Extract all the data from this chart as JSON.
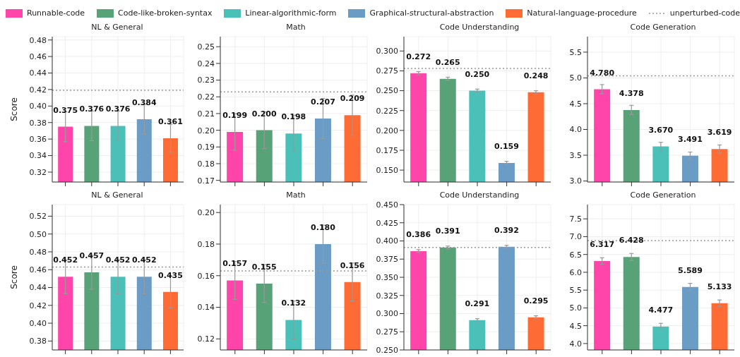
{
  "chart_data": [
    {
      "type": "bar",
      "title": "NL & General",
      "ylabel": "Score",
      "categories": [
        null,
        null,
        null,
        null,
        null
      ],
      "legend": "top",
      "grid": true,
      "tick_labels": "y",
      "ylim": [
        0.308,
        0.484
      ],
      "yticks": [
        {
          "value": 0.32,
          "label": "0.32"
        },
        {
          "value": 0.34,
          "label": "0.34"
        },
        {
          "value": 0.36,
          "label": "0.36"
        },
        {
          "value": 0.38,
          "label": "0.38"
        },
        {
          "value": 0.4,
          "label": "0.40"
        },
        {
          "value": 0.42,
          "label": "0.42"
        },
        {
          "value": 0.44,
          "label": "0.44"
        },
        {
          "value": 0.46,
          "label": "0.46"
        },
        {
          "value": 0.48,
          "label": "0.48"
        }
      ],
      "ref_lines": [
        {
          "axis": "y",
          "value": 0.419,
          "label": "unperturbed-code",
          "color": "#999999",
          "line_style": "dotted"
        }
      ],
      "series": [
        {
          "name": "Runnable-code",
          "color": "#ff44aa",
          "values": [
            0.375,
            null,
            null,
            null,
            null
          ],
          "errors": [
            0.018,
            null,
            null,
            null,
            null
          ],
          "value_labels": [
            "0.375",
            null,
            null,
            null,
            null
          ]
        },
        {
          "name": "Code-like-broken-syntax",
          "color": "#57a377",
          "values": [
            null,
            0.376,
            null,
            null,
            null
          ],
          "errors": [
            null,
            0.018,
            null,
            null,
            null
          ],
          "value_labels": [
            null,
            "0.376",
            null,
            null,
            null
          ]
        },
        {
          "name": "Linear-algorithmic-form",
          "color": "#4bc0b9",
          "values": [
            null,
            null,
            0.376,
            null,
            null
          ],
          "errors": [
            null,
            null,
            0.018,
            null,
            null
          ],
          "value_labels": [
            null,
            null,
            "0.376",
            null,
            null
          ]
        },
        {
          "name": "Graphical-structural-abstraction",
          "color": "#6a9cc5",
          "values": [
            null,
            null,
            null,
            0.384,
            null
          ],
          "errors": [
            null,
            null,
            null,
            0.018,
            null
          ],
          "value_labels": [
            null,
            null,
            null,
            "0.384",
            null
          ]
        },
        {
          "name": "Natural-language-procedure",
          "color": "#ff6b35",
          "values": [
            null,
            null,
            null,
            null,
            0.361
          ],
          "errors": [
            null,
            null,
            null,
            null,
            0.017
          ],
          "value_labels": [
            null,
            null,
            null,
            null,
            "0.361"
          ]
        }
      ]
    },
    {
      "type": "bar",
      "title": "Math",
      "categories": [
        null,
        null,
        null,
        null,
        null
      ],
      "grid": true,
      "tick_labels": "y",
      "ylim": [
        0.169,
        0.256
      ],
      "yticks": [
        {
          "value": 0.17,
          "label": "0.17"
        },
        {
          "value": 0.18,
          "label": "0.18"
        },
        {
          "value": 0.19,
          "label": "0.19"
        },
        {
          "value": 0.2,
          "label": "0.20"
        },
        {
          "value": 0.21,
          "label": "0.21"
        },
        {
          "value": 0.22,
          "label": "0.22"
        },
        {
          "value": 0.23,
          "label": "0.23"
        },
        {
          "value": 0.24,
          "label": "0.24"
        },
        {
          "value": 0.25,
          "label": "0.25"
        }
      ],
      "ref_lines": [
        {
          "axis": "y",
          "value": 0.223,
          "color": "#999999",
          "line_style": "dotted"
        }
      ],
      "series": [
        {
          "color": "#ff44aa",
          "values": [
            0.199,
            null,
            null,
            null,
            null
          ],
          "errors": [
            0.011,
            null,
            null,
            null,
            null
          ],
          "value_labels": [
            "0.199",
            null,
            null,
            null,
            null
          ]
        },
        {
          "color": "#57a377",
          "values": [
            null,
            0.2,
            null,
            null,
            null
          ],
          "errors": [
            null,
            0.011,
            null,
            null,
            null
          ],
          "value_labels": [
            null,
            "0.200",
            null,
            null,
            null
          ]
        },
        {
          "color": "#4bc0b9",
          "values": [
            null,
            null,
            0.198,
            null,
            null
          ],
          "errors": [
            null,
            null,
            0.011,
            null,
            null
          ],
          "value_labels": [
            null,
            null,
            "0.198",
            null,
            null
          ]
        },
        {
          "color": "#6a9cc5",
          "values": [
            null,
            null,
            null,
            0.207,
            null
          ],
          "errors": [
            null,
            null,
            null,
            0.012,
            null
          ],
          "value_labels": [
            null,
            null,
            null,
            "0.207",
            null
          ]
        },
        {
          "color": "#ff6b35",
          "values": [
            null,
            null,
            null,
            null,
            0.209
          ],
          "errors": [
            null,
            null,
            null,
            null,
            0.012
          ],
          "value_labels": [
            null,
            null,
            null,
            null,
            "0.209"
          ]
        }
      ]
    },
    {
      "type": "bar",
      "title": "Code Understanding",
      "categories": [
        null,
        null,
        null,
        null,
        null
      ],
      "grid": true,
      "tick_labels": "y",
      "ylim": [
        0.135,
        0.318
      ],
      "yticks": [
        {
          "value": 0.15,
          "label": "0.150"
        },
        {
          "value": 0.175,
          "label": "0.175"
        },
        {
          "value": 0.2,
          "label": "0.200"
        },
        {
          "value": 0.225,
          "label": "0.225"
        },
        {
          "value": 0.25,
          "label": "0.250"
        },
        {
          "value": 0.275,
          "label": "0.275"
        },
        {
          "value": 0.3,
          "label": "0.300"
        }
      ],
      "ref_lines": [
        {
          "axis": "y",
          "value": 0.278,
          "color": "#999999",
          "line_style": "dotted"
        }
      ],
      "series": [
        {
          "color": "#ff44aa",
          "values": [
            0.272,
            null,
            null,
            null,
            null
          ],
          "errors": [
            0.002,
            null,
            null,
            null,
            null
          ],
          "value_labels": [
            "0.272",
            null,
            null,
            null,
            null
          ]
        },
        {
          "color": "#57a377",
          "values": [
            null,
            0.265,
            null,
            null,
            null
          ],
          "errors": [
            null,
            0.002,
            null,
            null,
            null
          ],
          "value_labels": [
            null,
            "0.265",
            null,
            null,
            null
          ]
        },
        {
          "color": "#4bc0b9",
          "values": [
            null,
            null,
            0.25,
            null,
            null
          ],
          "errors": [
            null,
            null,
            0.002,
            null,
            null
          ],
          "value_labels": [
            null,
            null,
            "0.250",
            null,
            null
          ]
        },
        {
          "color": "#6a9cc5",
          "values": [
            null,
            null,
            null,
            0.159,
            null
          ],
          "errors": [
            null,
            null,
            null,
            0.002,
            null
          ],
          "value_labels": [
            null,
            null,
            null,
            "0.159",
            null
          ]
        },
        {
          "color": "#ff6b35",
          "values": [
            null,
            null,
            null,
            null,
            0.248
          ],
          "errors": [
            null,
            null,
            null,
            null,
            0.002
          ],
          "value_labels": [
            null,
            null,
            null,
            null,
            "0.248"
          ]
        }
      ]
    },
    {
      "type": "bar",
      "title": "Code Generation",
      "categories": [
        null,
        null,
        null,
        null,
        null
      ],
      "grid": true,
      "tick_labels": "y",
      "ylim": [
        2.98,
        5.8
      ],
      "yticks": [
        {
          "value": 3,
          "label": "3.0"
        },
        {
          "value": 3.5,
          "label": "3.5"
        },
        {
          "value": 4,
          "label": "4.0"
        },
        {
          "value": 4.5,
          "label": "4.5"
        },
        {
          "value": 5,
          "label": "5.0"
        },
        {
          "value": 5.5,
          "label": "5.5"
        }
      ],
      "ref_lines": [
        {
          "axis": "y",
          "value": 5.04,
          "color": "#999999",
          "line_style": "dotted"
        }
      ],
      "series": [
        {
          "color": "#ff44aa",
          "values": [
            4.78,
            null,
            null,
            null,
            null
          ],
          "errors": [
            0.09,
            null,
            null,
            null,
            null
          ],
          "value_labels": [
            "4.780",
            null,
            null,
            null,
            null
          ]
        },
        {
          "color": "#57a377",
          "values": [
            null,
            4.378,
            null,
            null,
            null
          ],
          "errors": [
            null,
            0.09,
            null,
            null,
            null
          ],
          "value_labels": [
            null,
            "4.378",
            null,
            null,
            null
          ]
        },
        {
          "color": "#4bc0b9",
          "values": [
            null,
            null,
            3.67,
            null,
            null
          ],
          "errors": [
            null,
            null,
            0.08,
            null,
            null
          ],
          "value_labels": [
            null,
            null,
            "3.670",
            null,
            null
          ]
        },
        {
          "color": "#6a9cc5",
          "values": [
            null,
            null,
            null,
            3.491,
            null
          ],
          "errors": [
            null,
            null,
            null,
            0.07,
            null
          ],
          "value_labels": [
            null,
            null,
            null,
            "3.491",
            null
          ]
        },
        {
          "color": "#ff6b35",
          "values": [
            null,
            null,
            null,
            null,
            3.619
          ],
          "errors": [
            null,
            null,
            null,
            null,
            0.08
          ],
          "value_labels": [
            null,
            null,
            null,
            null,
            "3.619"
          ]
        }
      ]
    },
    {
      "type": "bar",
      "title": "NL & General",
      "ylabel": "Score",
      "categories": [
        null,
        null,
        null,
        null,
        null
      ],
      "grid": true,
      "tick_labels": "y",
      "ylim": [
        0.37,
        0.533
      ],
      "yticks": [
        {
          "value": 0.38,
          "label": "0.38"
        },
        {
          "value": 0.4,
          "label": "0.40"
        },
        {
          "value": 0.42,
          "label": "0.42"
        },
        {
          "value": 0.44,
          "label": "0.44"
        },
        {
          "value": 0.46,
          "label": "0.46"
        },
        {
          "value": 0.48,
          "label": "0.48"
        },
        {
          "value": 0.5,
          "label": "0.50"
        },
        {
          "value": 0.52,
          "label": "0.52"
        }
      ],
      "ref_lines": [
        {
          "axis": "y",
          "value": 0.463,
          "color": "#999999",
          "line_style": "dotted"
        }
      ],
      "series": [
        {
          "color": "#ff44aa",
          "values": [
            0.452,
            null,
            null,
            null,
            null
          ],
          "errors": [
            0.019,
            null,
            null,
            null,
            null
          ],
          "value_labels": [
            "0.452",
            null,
            null,
            null,
            null
          ]
        },
        {
          "color": "#57a377",
          "values": [
            null,
            0.457,
            null,
            null,
            null
          ],
          "errors": [
            null,
            0.019,
            null,
            null,
            null
          ],
          "value_labels": [
            null,
            "0.457",
            null,
            null,
            null
          ]
        },
        {
          "color": "#4bc0b9",
          "values": [
            null,
            null,
            0.452,
            null,
            null
          ],
          "errors": [
            null,
            null,
            0.019,
            null,
            null
          ],
          "value_labels": [
            null,
            null,
            "0.452",
            null,
            null
          ]
        },
        {
          "color": "#6a9cc5",
          "values": [
            null,
            null,
            null,
            0.452,
            null
          ],
          "errors": [
            null,
            null,
            null,
            0.019,
            null
          ],
          "value_labels": [
            null,
            null,
            null,
            "0.452",
            null
          ]
        },
        {
          "color": "#ff6b35",
          "values": [
            null,
            null,
            null,
            null,
            0.435
          ],
          "errors": [
            null,
            null,
            null,
            null,
            0.018
          ],
          "value_labels": [
            null,
            null,
            null,
            null,
            "0.435"
          ]
        }
      ]
    },
    {
      "type": "bar",
      "title": "Math",
      "categories": [
        null,
        null,
        null,
        null,
        null
      ],
      "grid": true,
      "tick_labels": "y",
      "ylim": [
        0.113,
        0.205
      ],
      "yticks": [
        {
          "value": 0.12,
          "label": "0.12"
        },
        {
          "value": 0.14,
          "label": "0.14"
        },
        {
          "value": 0.16,
          "label": "0.16"
        },
        {
          "value": 0.18,
          "label": "0.18"
        },
        {
          "value": 0.2,
          "label": "0.20"
        }
      ],
      "ref_lines": [
        {
          "axis": "y",
          "value": 0.163,
          "color": "#999999",
          "line_style": "dotted"
        }
      ],
      "series": [
        {
          "color": "#ff44aa",
          "values": [
            0.157,
            null,
            null,
            null,
            null
          ],
          "errors": [
            0.012,
            null,
            null,
            null,
            null
          ],
          "value_labels": [
            "0.157",
            null,
            null,
            null,
            null
          ]
        },
        {
          "color": "#57a377",
          "values": [
            null,
            0.155,
            null,
            null,
            null
          ],
          "errors": [
            null,
            0.012,
            null,
            null,
            null
          ],
          "value_labels": [
            null,
            "0.155",
            null,
            null,
            null
          ]
        },
        {
          "color": "#4bc0b9",
          "values": [
            null,
            null,
            0.132,
            null,
            null
          ],
          "errors": [
            null,
            null,
            0.012,
            null,
            null
          ],
          "value_labels": [
            null,
            null,
            "0.132",
            null,
            null
          ]
        },
        {
          "color": "#6a9cc5",
          "values": [
            null,
            null,
            null,
            0.18,
            null
          ],
          "errors": [
            null,
            null,
            null,
            0.012,
            null
          ],
          "value_labels": [
            null,
            null,
            null,
            "0.180",
            null
          ]
        },
        {
          "color": "#ff6b35",
          "values": [
            null,
            null,
            null,
            null,
            0.156
          ],
          "errors": [
            null,
            null,
            null,
            null,
            0.012
          ],
          "value_labels": [
            null,
            null,
            null,
            null,
            "0.156"
          ]
        }
      ]
    },
    {
      "type": "bar",
      "title": "Code Understanding",
      "categories": [
        null,
        null,
        null,
        null,
        null
      ],
      "grid": true,
      "tick_labels": "y",
      "ylim": [
        0.25,
        0.45
      ],
      "yticks": [
        {
          "value": 0.25,
          "label": "0.250"
        },
        {
          "value": 0.275,
          "label": "0.275"
        },
        {
          "value": 0.3,
          "label": "0.300"
        },
        {
          "value": 0.325,
          "label": "0.325"
        },
        {
          "value": 0.35,
          "label": "0.350"
        },
        {
          "value": 0.375,
          "label": "0.375"
        },
        {
          "value": 0.4,
          "label": "0.400"
        },
        {
          "value": 0.425,
          "label": "0.425"
        },
        {
          "value": 0.45,
          "label": "0.450"
        }
      ],
      "ref_lines": [
        {
          "axis": "y",
          "value": 0.391,
          "color": "#999999",
          "line_style": "dotted"
        }
      ],
      "series": [
        {
          "color": "#ff44aa",
          "values": [
            0.386,
            null,
            null,
            null,
            null
          ],
          "errors": [
            0.002,
            null,
            null,
            null,
            null
          ],
          "value_labels": [
            "0.386",
            null,
            null,
            null,
            null
          ]
        },
        {
          "color": "#57a377",
          "values": [
            null,
            0.391,
            null,
            null,
            null
          ],
          "errors": [
            null,
            0.002,
            null,
            null,
            null
          ],
          "value_labels": [
            null,
            "0.391",
            null,
            null,
            null
          ]
        },
        {
          "color": "#4bc0b9",
          "values": [
            null,
            null,
            0.291,
            null,
            null
          ],
          "errors": [
            null,
            null,
            0.002,
            null,
            null
          ],
          "value_labels": [
            null,
            null,
            "0.291",
            null,
            null
          ]
        },
        {
          "color": "#6a9cc5",
          "values": [
            null,
            null,
            null,
            0.392,
            null
          ],
          "errors": [
            null,
            null,
            null,
            0.002,
            null
          ],
          "value_labels": [
            null,
            null,
            null,
            "0.392",
            null
          ]
        },
        {
          "color": "#ff6b35",
          "values": [
            null,
            null,
            null,
            null,
            0.295
          ],
          "errors": [
            null,
            null,
            null,
            null,
            0.002
          ],
          "value_labels": [
            null,
            null,
            null,
            null,
            "0.295"
          ]
        }
      ]
    },
    {
      "type": "bar",
      "title": "Code Generation",
      "categories": [
        null,
        null,
        null,
        null,
        null
      ],
      "grid": true,
      "tick_labels": "y",
      "ylim": [
        3.82,
        7.9
      ],
      "yticks": [
        {
          "value": 4,
          "label": "4.0"
        },
        {
          "value": 4.5,
          "label": "4.5"
        },
        {
          "value": 5,
          "label": "5.0"
        },
        {
          "value": 5.5,
          "label": "5.5"
        },
        {
          "value": 6,
          "label": "6.0"
        },
        {
          "value": 6.5,
          "label": "6.5"
        },
        {
          "value": 7,
          "label": "7.0"
        },
        {
          "value": 7.5,
          "label": "7.5"
        }
      ],
      "ref_lines": [
        {
          "axis": "y",
          "value": 6.89,
          "color": "#999999",
          "line_style": "dotted"
        }
      ],
      "series": [
        {
          "color": "#ff44aa",
          "values": [
            6.317,
            null,
            null,
            null,
            null
          ],
          "errors": [
            0.09,
            null,
            null,
            null,
            null
          ],
          "value_labels": [
            "6.317",
            null,
            null,
            null,
            null
          ]
        },
        {
          "color": "#57a377",
          "values": [
            null,
            6.428,
            null,
            null,
            null
          ],
          "errors": [
            null,
            0.1,
            null,
            null,
            null
          ],
          "value_labels": [
            null,
            "6.428",
            null,
            null,
            null
          ]
        },
        {
          "color": "#4bc0b9",
          "values": [
            null,
            null,
            4.477,
            null,
            null
          ],
          "errors": [
            null,
            null,
            0.09,
            null,
            null
          ],
          "value_labels": [
            null,
            null,
            "4.477",
            null,
            null
          ]
        },
        {
          "color": "#6a9cc5",
          "values": [
            null,
            null,
            null,
            5.589,
            null
          ],
          "errors": [
            null,
            null,
            null,
            0.1,
            null
          ],
          "value_labels": [
            null,
            null,
            null,
            "5.589",
            null
          ]
        },
        {
          "color": "#ff6b35",
          "values": [
            null,
            null,
            null,
            null,
            5.133
          ],
          "errors": [
            null,
            null,
            null,
            null,
            0.09
          ],
          "value_labels": [
            null,
            null,
            null,
            null,
            "5.133"
          ]
        }
      ]
    }
  ]
}
